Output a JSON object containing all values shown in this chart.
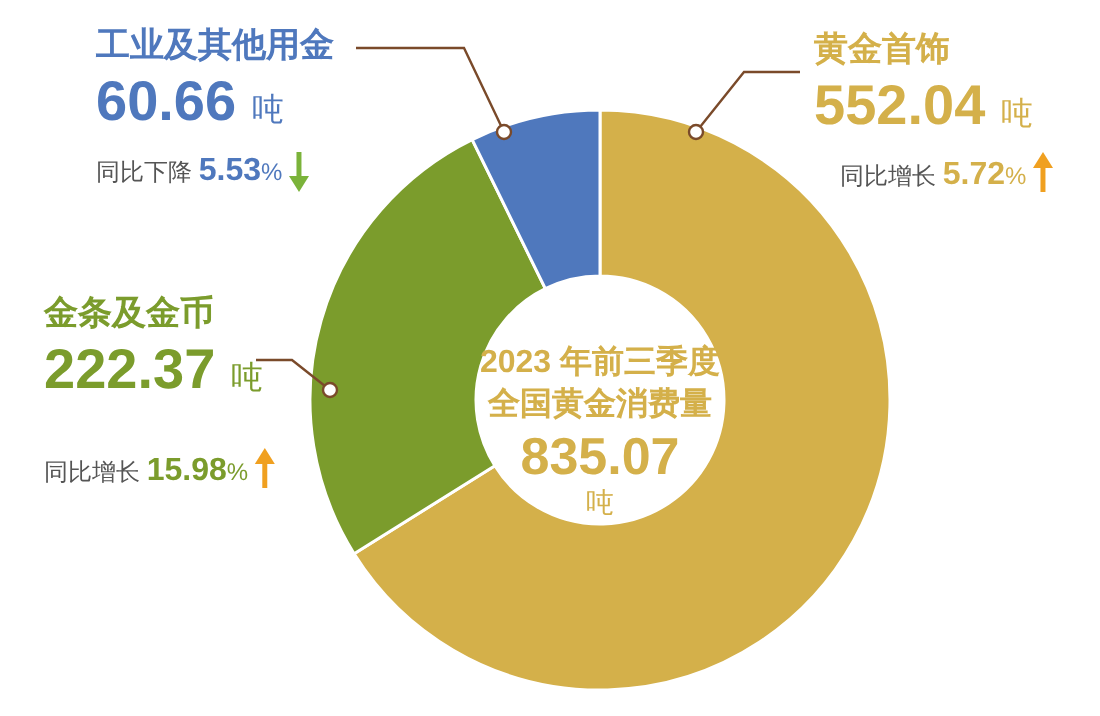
{
  "chart_data": {
    "type": "donut",
    "title": "2023 年前三季度",
    "subtitle": "全国黄金消费量",
    "categories": [
      "黄金首饰",
      "金条及金币",
      "工业及其他用金"
    ],
    "values": [
      552.04,
      222.37,
      60.66
    ],
    "colors": [
      "#d4b04a",
      "#7b9c2c",
      "#4f78bd"
    ],
    "value_labels": [
      "552.04 吨",
      "222.37 吨",
      "60.66 吨"
    ],
    "annotations": [
      "同比增长 5.72%",
      "同比增长 15.98%",
      "同比下降 5.53%",
      "835.07 吨"
    ]
  }
}
